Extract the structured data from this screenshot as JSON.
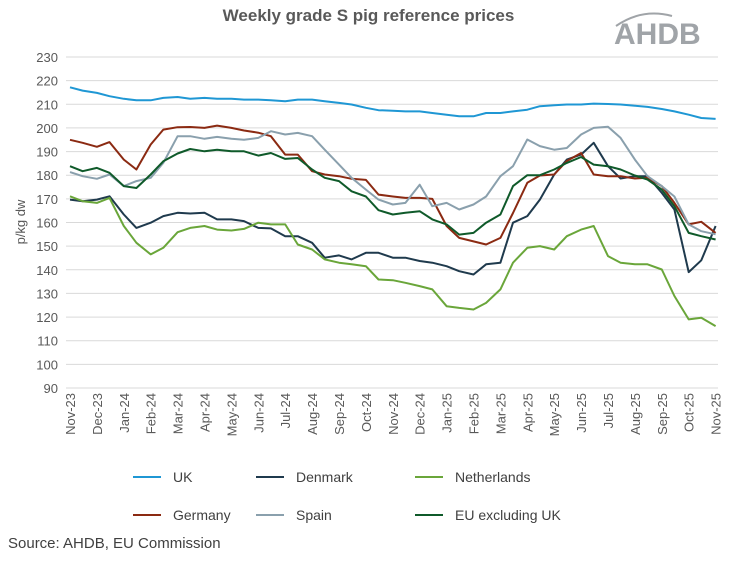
{
  "title": "Weekly grade S pig reference prices",
  "logo_text": "AHDB",
  "source": "Source: AHDB, EU Commission",
  "chart_data": {
    "type": "line",
    "title": "Weekly grade S pig reference prices",
    "ylabel": "p/kg dw",
    "xlabel": "",
    "ylim": [
      90,
      230
    ],
    "yticks": [
      90,
      100,
      110,
      120,
      130,
      140,
      150,
      160,
      170,
      180,
      190,
      200,
      210,
      220,
      230
    ],
    "grid": "horizontal",
    "legend_position": "bottom",
    "xtick_labels": [
      "Nov-23",
      "Dec-23",
      "Jan-24",
      "Feb-24",
      "Mar-24",
      "Apr-24",
      "May-24",
      "Jun-24",
      "Jul-24",
      "Aug-24",
      "Sep-24",
      "Oct-24",
      "Nov-24",
      "Dec-24",
      "Jan-25",
      "Feb-25",
      "Mar-25",
      "Apr-25",
      "May-25",
      "Jun-25",
      "Jul-25",
      "Aug-25",
      "Sep-25",
      "Oct-25",
      "Nov-25"
    ],
    "x": [
      "2023-11-01",
      "2023-11-15",
      "2023-12-01",
      "2023-12-15",
      "2024-01-01",
      "2024-01-15",
      "2024-02-01",
      "2024-02-15",
      "2024-03-01",
      "2024-03-15",
      "2024-04-01",
      "2024-04-15",
      "2024-05-01",
      "2024-05-15",
      "2024-06-01",
      "2024-06-15",
      "2024-07-01",
      "2024-07-15",
      "2024-08-01",
      "2024-08-15",
      "2024-09-01",
      "2024-09-15",
      "2024-10-01",
      "2024-10-15",
      "2024-11-01",
      "2024-11-15",
      "2024-12-01",
      "2024-12-15",
      "2025-01-01",
      "2025-01-15",
      "2025-02-01",
      "2025-02-15",
      "2025-03-01",
      "2025-03-15",
      "2025-04-01",
      "2025-04-15",
      "2025-05-01",
      "2025-05-15",
      "2025-06-01",
      "2025-06-15",
      "2025-07-01",
      "2025-07-15",
      "2025-08-01",
      "2025-08-15",
      "2025-09-01",
      "2025-09-15",
      "2025-10-01",
      "2025-10-15",
      "2025-11-01"
    ],
    "series": [
      {
        "name": "UK",
        "color": "#1f97d4",
        "values": [
          217.2,
          215.8,
          214.8,
          213.4,
          212.3,
          211.7,
          211.7,
          212.7,
          213.1,
          212.3,
          212.7,
          212.3,
          212.3,
          212,
          212,
          211.7,
          211.3,
          212,
          212,
          211.3,
          210.6,
          209.9,
          208.5,
          207.5,
          207.3,
          207,
          207,
          206.3,
          205.6,
          204.9,
          204.9,
          206.3,
          206.3,
          207,
          207.7,
          209.2,
          209.6,
          209.9,
          209.9,
          210.3,
          210.1,
          209.9,
          209.4,
          208.9,
          208,
          207,
          205.6,
          204.2,
          203.8
        ]
      },
      {
        "name": "Denmark",
        "color": "#1f3a4d",
        "values": [
          169.7,
          169,
          169.7,
          171.1,
          163.4,
          157.7,
          159.9,
          162.7,
          164.1,
          163.8,
          164.1,
          161.3,
          161.3,
          160.6,
          157.7,
          157.5,
          154.2,
          154.2,
          151.4,
          145.1,
          146.1,
          144.4,
          147.2,
          147.2,
          145.1,
          145.1,
          143.7,
          143,
          141.5,
          139.4,
          138,
          142.3,
          143,
          159.9,
          162.7,
          169.7,
          180.3,
          186.6,
          188.7,
          193.7,
          183.8,
          178.6,
          179.6,
          179.6,
          172.5,
          165.5,
          139,
          144,
          158.5
        ]
      },
      {
        "name": "Netherlands",
        "color": "#6aa63a",
        "values": [
          171.1,
          169,
          168.3,
          170.4,
          158.5,
          151.4,
          146.5,
          149.3,
          155.9,
          157.7,
          158.5,
          157,
          156.6,
          157.3,
          159.9,
          159.2,
          159.2,
          150.7,
          148.6,
          144.4,
          143,
          142.3,
          141.5,
          135.9,
          135.6,
          134.5,
          133.1,
          131.7,
          124.6,
          123.9,
          123.2,
          126,
          131.7,
          143,
          149.3,
          150,
          148.6,
          154.2,
          157,
          158.5,
          145.8,
          143,
          142.3,
          142.3,
          140.1,
          128.9,
          119,
          119.7,
          116.2
        ]
      },
      {
        "name": "Germany",
        "color": "#8b2a12",
        "values": [
          195,
          193.7,
          192,
          194,
          186.6,
          182.4,
          193,
          199.3,
          200.3,
          200.4,
          200,
          201,
          200,
          198.9,
          198,
          196.5,
          188.7,
          188.7,
          181.7,
          180.3,
          179.6,
          178.5,
          178,
          171.8,
          171,
          170.4,
          170.4,
          170,
          158.5,
          153.5,
          152,
          150.7,
          153.5,
          164,
          176.8,
          179.9,
          180.3,
          186,
          189.4,
          180.3,
          179.6,
          179.6,
          178.6,
          178.9,
          175.4,
          168.3,
          159.2,
          160.3,
          155.6
        ]
      },
      {
        "name": "Spain",
        "color": "#8aa0ad",
        "values": [
          181.3,
          179.6,
          178.5,
          180.3,
          175.4,
          177.5,
          178.9,
          185.2,
          196.5,
          196.5,
          195.4,
          196.2,
          195.4,
          195,
          195.8,
          198.6,
          197.2,
          197.9,
          196.5,
          190.8,
          184.5,
          178.9,
          173.9,
          169.7,
          167.6,
          168.3,
          176,
          166.9,
          168.3,
          165.5,
          167.6,
          171,
          179.6,
          183.8,
          195.1,
          192.3,
          190.8,
          191.5,
          197.2,
          200,
          200.5,
          195.8,
          186.6,
          179.6,
          175.4,
          171,
          159.2,
          156.3,
          155
        ]
      },
      {
        "name": "EU excluding UK",
        "color": "#0f5a2a",
        "values": [
          183.8,
          181.7,
          183.1,
          181,
          175.4,
          174.6,
          180.3,
          185.9,
          189.2,
          191.1,
          190.1,
          190.8,
          190.1,
          190.1,
          188.3,
          189.4,
          186.9,
          187.3,
          182.4,
          178.9,
          177.5,
          173.2,
          171,
          165.2,
          163.4,
          164.1,
          164.8,
          161.3,
          159.2,
          154.9,
          155.6,
          159.9,
          163.4,
          175.4,
          180,
          180,
          182.4,
          185.2,
          187.7,
          184.5,
          183.8,
          182.4,
          179.9,
          178.2,
          173.9,
          166.9,
          155.6,
          154.2,
          152.8
        ]
      }
    ]
  }
}
